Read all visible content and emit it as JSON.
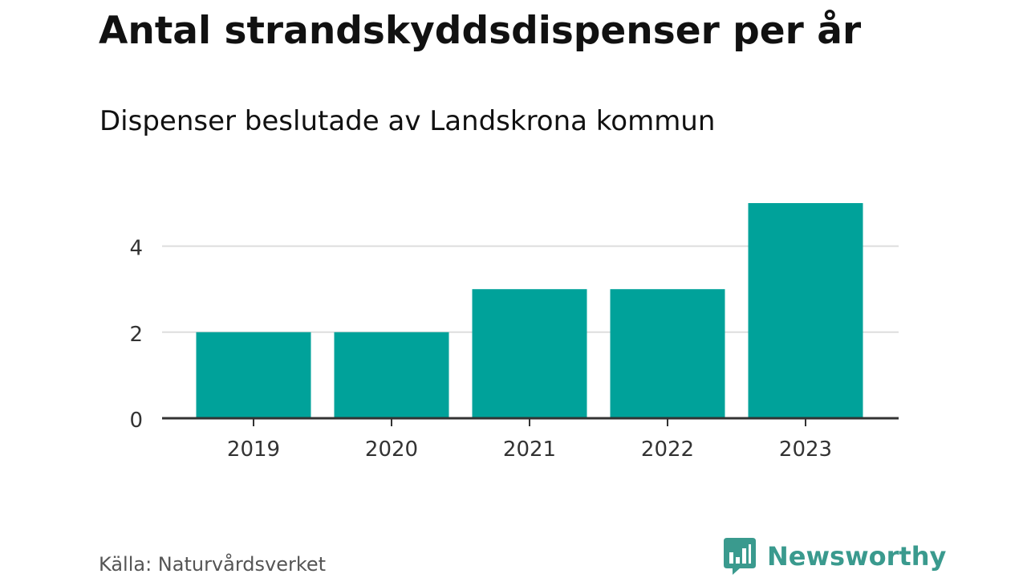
{
  "title": "Antal strandskyddsdispenser per år",
  "subtitle": "Dispenser beslutade av Landskrona kommun",
  "source": "Källa: Naturvårdsverket",
  "brand": {
    "name": "Newsworthy",
    "color": "#3a9a8e"
  },
  "colors": {
    "bar": "#00a29a",
    "grid": "#dddddd",
    "axis": "#333333",
    "tick_text": "#333333"
  },
  "chart_data": {
    "type": "bar",
    "title": "Antal strandskyddsdispenser per år",
    "subtitle": "Dispenser beslutade av Landskrona kommun",
    "categories": [
      "2019",
      "2020",
      "2021",
      "2022",
      "2023"
    ],
    "values": [
      2,
      2,
      3,
      3,
      5
    ],
    "xlabel": "",
    "ylabel": "",
    "ylim": [
      0,
      5
    ],
    "yticks": [
      0,
      2,
      4
    ],
    "grid": true,
    "legend": "none"
  }
}
